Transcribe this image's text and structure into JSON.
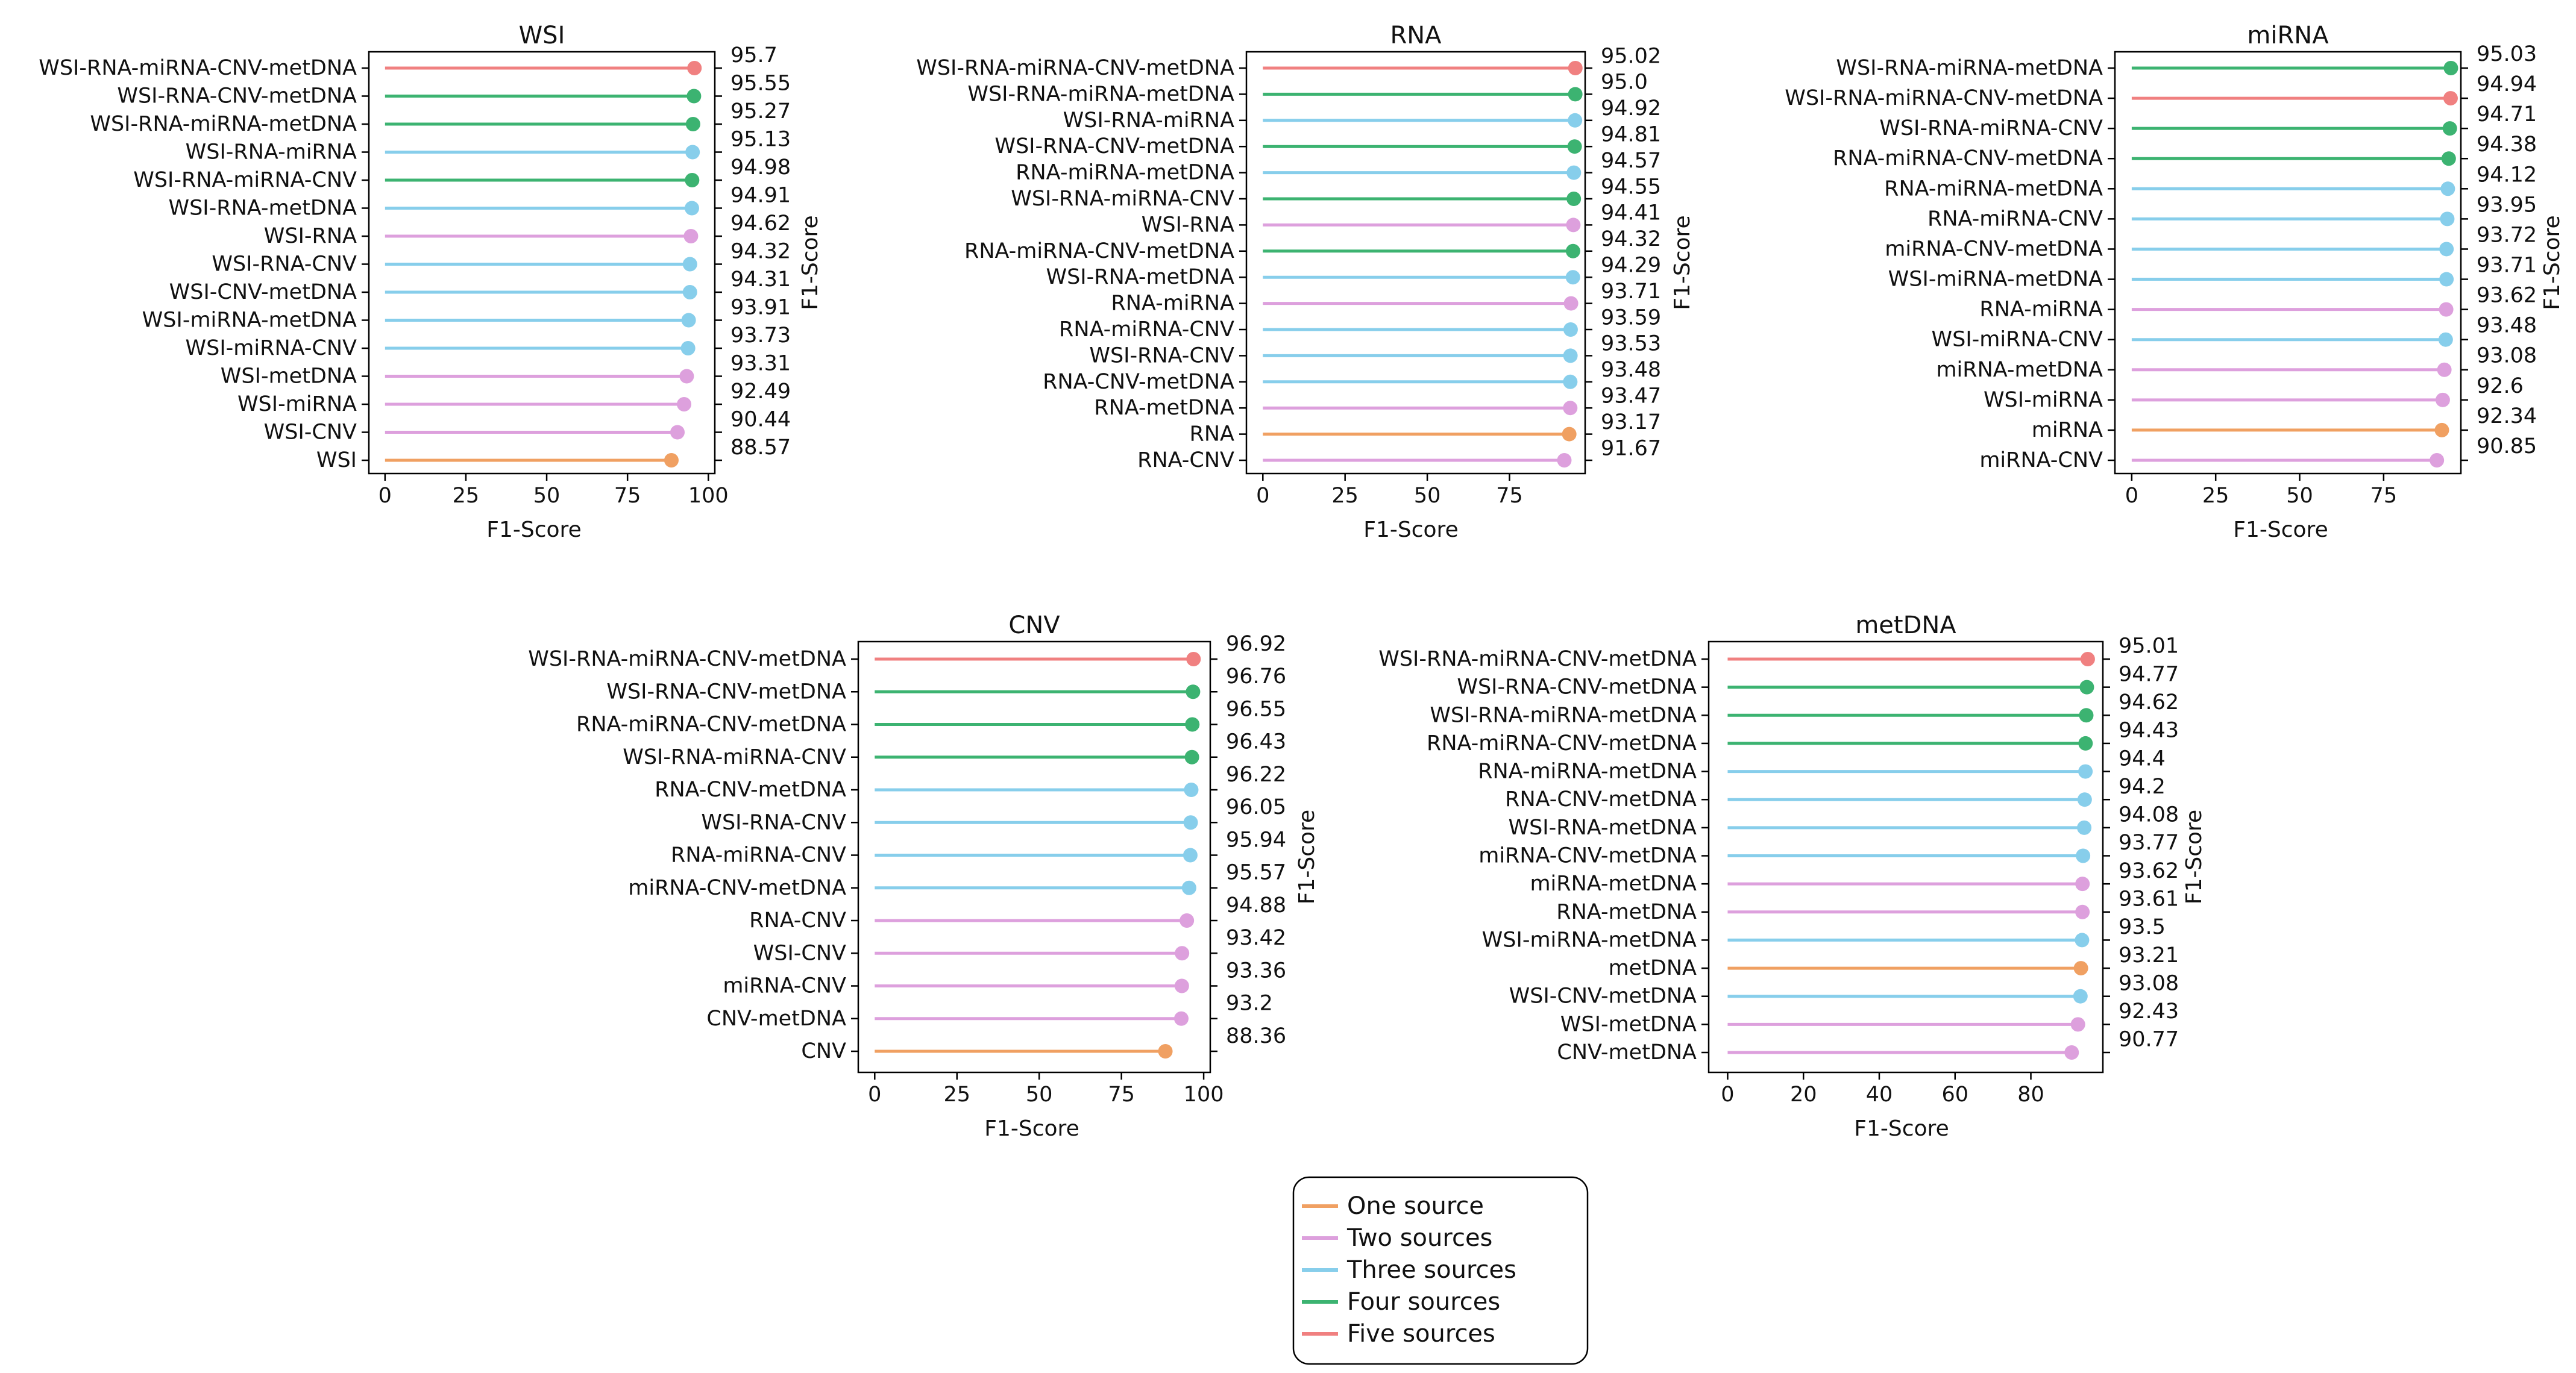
{
  "source_names": [
    "One source",
    "Two sources",
    "Three sources",
    "Four sources",
    "Five sources"
  ],
  "colors": {
    "One source": "#F0A062",
    "Two sources": "#DDA0DD",
    "Three sources": "#87CEEB",
    "Four sources": "#3CB371",
    "Five sources": "#F08080"
  },
  "legend": {
    "placement": "bottom-center",
    "items": [
      "One source",
      "Two sources",
      "Three sources",
      "Four sources",
      "Five sources"
    ]
  },
  "chart_data": [
    {
      "type": "lollipop",
      "title": "WSI",
      "xlabel": "F1-Score",
      "ylabel_right": "F1-Score",
      "xlim": [
        -5,
        102
      ],
      "xticks": [
        0,
        25,
        50,
        75,
        100
      ],
      "grid": false,
      "categories": [
        "WSI-RNA-miRNA-CNV-metDNA",
        "WSI-RNA-CNV-metDNA",
        "WSI-RNA-miRNA-metDNA",
        "WSI-RNA-miRNA",
        "WSI-RNA-miRNA-CNV",
        "WSI-RNA-metDNA",
        "WSI-RNA",
        "WSI-RNA-CNV",
        "WSI-CNV-metDNA",
        "WSI-miRNA-metDNA",
        "WSI-miRNA-CNV",
        "WSI-metDNA",
        "WSI-miRNA",
        "WSI-CNV",
        "WSI"
      ],
      "value_labels": [
        "95.7",
        "95.55",
        "95.27",
        "95.13",
        "94.98",
        "94.91",
        "94.62",
        "94.32",
        "94.31",
        "93.91",
        "93.73",
        "93.31",
        "92.49",
        "90.44",
        "88.57"
      ],
      "values": [
        95.7,
        95.55,
        95.27,
        95.13,
        94.98,
        94.91,
        94.62,
        94.32,
        94.31,
        93.91,
        93.73,
        93.31,
        92.49,
        90.44,
        88.57
      ],
      "groups": [
        "Five sources",
        "Four sources",
        "Four sources",
        "Three sources",
        "Four sources",
        "Three sources",
        "Two sources",
        "Three sources",
        "Three sources",
        "Three sources",
        "Three sources",
        "Two sources",
        "Two sources",
        "Two sources",
        "One source"
      ]
    },
    {
      "type": "lollipop",
      "title": "RNA",
      "xlabel": "F1-Score",
      "ylabel_right": "F1-Score",
      "xlim": [
        -5,
        98
      ],
      "xticks": [
        0,
        25,
        50,
        75
      ],
      "grid": false,
      "categories": [
        "WSI-RNA-miRNA-CNV-metDNA",
        "WSI-RNA-miRNA-metDNA",
        "WSI-RNA-miRNA",
        "WSI-RNA-CNV-metDNA",
        "RNA-miRNA-metDNA",
        "WSI-RNA-miRNA-CNV",
        "WSI-RNA",
        "RNA-miRNA-CNV-metDNA",
        "WSI-RNA-metDNA",
        "RNA-miRNA",
        "RNA-miRNA-CNV",
        "WSI-RNA-CNV",
        "RNA-CNV-metDNA",
        "RNA-metDNA",
        "RNA",
        "RNA-CNV"
      ],
      "value_labels": [
        "95.02",
        "95.0",
        "94.92",
        "94.81",
        "94.57",
        "94.55",
        "94.41",
        "94.32",
        "94.29",
        "93.71",
        "93.59",
        "93.53",
        "93.48",
        "93.47",
        "93.17",
        "91.67"
      ],
      "values": [
        95.02,
        95.0,
        94.92,
        94.81,
        94.57,
        94.55,
        94.41,
        94.32,
        94.29,
        93.71,
        93.59,
        93.53,
        93.48,
        93.47,
        93.17,
        91.67
      ],
      "groups": [
        "Five sources",
        "Four sources",
        "Three sources",
        "Four sources",
        "Three sources",
        "Four sources",
        "Two sources",
        "Four sources",
        "Three sources",
        "Two sources",
        "Three sources",
        "Three sources",
        "Three sources",
        "Two sources",
        "One source",
        "Two sources"
      ]
    },
    {
      "type": "lollipop",
      "title": "miRNA",
      "xlabel": "F1-Score",
      "ylabel_right": "F1-Score",
      "xlim": [
        -5,
        98
      ],
      "xticks": [
        0,
        25,
        50,
        75
      ],
      "grid": false,
      "categories": [
        "WSI-RNA-miRNA-metDNA",
        "WSI-RNA-miRNA-CNV-metDNA",
        "WSI-RNA-miRNA-CNV",
        "RNA-miRNA-CNV-metDNA",
        "RNA-miRNA-metDNA",
        "RNA-miRNA-CNV",
        "miRNA-CNV-metDNA",
        "WSI-miRNA-metDNA",
        "RNA-miRNA",
        "WSI-miRNA-CNV",
        "miRNA-metDNA",
        "WSI-miRNA",
        "miRNA",
        "miRNA-CNV"
      ],
      "value_labels": [
        "95.03",
        "94.94",
        "94.71",
        "94.38",
        "94.12",
        "93.95",
        "93.72",
        "93.71",
        "93.62",
        "93.48",
        "93.08",
        "92.6",
        "92.34",
        "90.85"
      ],
      "values": [
        95.03,
        94.94,
        94.71,
        94.38,
        94.12,
        93.95,
        93.72,
        93.71,
        93.62,
        93.48,
        93.08,
        92.6,
        92.34,
        90.85
      ],
      "groups": [
        "Four sources",
        "Five sources",
        "Four sources",
        "Four sources",
        "Three sources",
        "Three sources",
        "Three sources",
        "Three sources",
        "Two sources",
        "Three sources",
        "Two sources",
        "Two sources",
        "One source",
        "Two sources"
      ]
    },
    {
      "type": "lollipop",
      "title": "CNV",
      "xlabel": "F1-Score",
      "ylabel_right": "F1-Score",
      "xlim": [
        -5,
        102
      ],
      "xticks": [
        0,
        25,
        50,
        75,
        100
      ],
      "grid": false,
      "categories": [
        "WSI-RNA-miRNA-CNV-metDNA",
        "WSI-RNA-CNV-metDNA",
        "RNA-miRNA-CNV-metDNA",
        "WSI-RNA-miRNA-CNV",
        "RNA-CNV-metDNA",
        "WSI-RNA-CNV",
        "RNA-miRNA-CNV",
        "miRNA-CNV-metDNA",
        "RNA-CNV",
        "WSI-CNV",
        "miRNA-CNV",
        "CNV-metDNA",
        "CNV"
      ],
      "value_labels": [
        "96.92",
        "96.76",
        "96.55",
        "96.43",
        "96.22",
        "96.05",
        "95.94",
        "95.57",
        "94.88",
        "93.42",
        "93.36",
        "93.2",
        "88.36"
      ],
      "values": [
        96.92,
        96.76,
        96.55,
        96.43,
        96.22,
        96.05,
        95.94,
        95.57,
        94.88,
        93.42,
        93.36,
        93.2,
        88.36
      ],
      "groups": [
        "Five sources",
        "Four sources",
        "Four sources",
        "Four sources",
        "Three sources",
        "Three sources",
        "Three sources",
        "Three sources",
        "Two sources",
        "Two sources",
        "Two sources",
        "Two sources",
        "One source"
      ]
    },
    {
      "type": "lollipop",
      "title": "metDNA",
      "xlabel": "F1-Score",
      "ylabel_right": "F1-Score",
      "xlim": [
        -5,
        99
      ],
      "xticks": [
        0,
        20,
        40,
        60,
        80
      ],
      "grid": false,
      "categories": [
        "WSI-RNA-miRNA-CNV-metDNA",
        "WSI-RNA-CNV-metDNA",
        "WSI-RNA-miRNA-metDNA",
        "RNA-miRNA-CNV-metDNA",
        "RNA-miRNA-metDNA",
        "RNA-CNV-metDNA",
        "WSI-RNA-metDNA",
        "miRNA-CNV-metDNA",
        "miRNA-metDNA",
        "RNA-metDNA",
        "WSI-miRNA-metDNA",
        "metDNA",
        "WSI-CNV-metDNA",
        "WSI-metDNA",
        "CNV-metDNA"
      ],
      "value_labels": [
        "95.01",
        "94.77",
        "94.62",
        "94.43",
        "94.4",
        "94.2",
        "94.08",
        "93.77",
        "93.62",
        "93.61",
        "93.5",
        "93.21",
        "93.08",
        "92.43",
        "90.77"
      ],
      "values": [
        95.01,
        94.77,
        94.62,
        94.43,
        94.4,
        94.2,
        94.08,
        93.77,
        93.62,
        93.61,
        93.5,
        93.21,
        93.08,
        92.43,
        90.77
      ],
      "groups": [
        "Five sources",
        "Four sources",
        "Four sources",
        "Four sources",
        "Three sources",
        "Three sources",
        "Three sources",
        "Three sources",
        "Two sources",
        "Two sources",
        "Three sources",
        "One source",
        "Three sources",
        "Two sources",
        "Two sources"
      ]
    }
  ]
}
